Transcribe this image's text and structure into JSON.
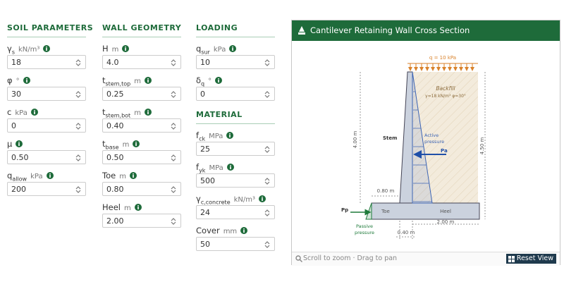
{
  "columns": [
    {
      "sections": [
        {
          "title": "SOIL PARAMETERS",
          "fields": [
            {
              "symbol": "γ",
              "sub": "s",
              "unit": "kN/m³",
              "value": "18"
            },
            {
              "symbol": "φ",
              "unit": "°",
              "value": "30"
            },
            {
              "symbol": "c",
              "unit": "kPa",
              "value": "0"
            },
            {
              "symbol": "μ",
              "value": "0.50"
            },
            {
              "symbol": "q",
              "sub": "allow",
              "unit": "kPa",
              "value": "200"
            }
          ]
        }
      ]
    },
    {
      "sections": [
        {
          "title": "WALL GEOMETRY",
          "fields": [
            {
              "symbol": "H",
              "unit": "m",
              "value": "4.0"
            },
            {
              "symbol": "t",
              "sub": "stem,top",
              "unit": "m",
              "value": "0.25"
            },
            {
              "symbol": "t",
              "sub": "stem,bot",
              "unit": "m",
              "value": "0.40"
            },
            {
              "symbol": "t",
              "sub": "base",
              "unit": "m",
              "value": "0.50"
            },
            {
              "symbol": "Toe",
              "unit": "m",
              "value": "0.80"
            },
            {
              "symbol": "Heel",
              "unit": "m",
              "value": "2.00"
            }
          ]
        }
      ]
    },
    {
      "sections": [
        {
          "title": "LOADING",
          "fields": [
            {
              "symbol": "q",
              "sub": "sur",
              "unit": "kPa",
              "value": "10"
            },
            {
              "symbol": "δ",
              "sub": "q",
              "unit": "°",
              "value": "0"
            }
          ]
        },
        {
          "title": "MATERIAL",
          "fields": [
            {
              "symbol": "f",
              "sub": "ck",
              "unit": "MPa",
              "value": "25"
            },
            {
              "symbol": "f",
              "sub": "yk",
              "unit": "MPa",
              "value": "500"
            },
            {
              "symbol": "γ",
              "sub": "c,concrete",
              "unit": "kN/m³",
              "value": "24"
            },
            {
              "symbol": "Cover",
              "unit": "mm",
              "value": "50"
            }
          ]
        }
      ]
    }
  ],
  "panel": {
    "title": "Cantilever Retaining Wall Cross Section",
    "diagram": {
      "surcharge": "q = 10 kPa",
      "backfill": "Backfill",
      "backfill_props": "γ=18 kN/m³  φ=30°",
      "stem": "Stem",
      "active": [
        "Active",
        "pressure"
      ],
      "pa": "Pa",
      "h_stem": "4.00 m",
      "h_total": "4.50 m",
      "toe": "0.80 m",
      "toe_label": "Toe",
      "heel_label": "Heel",
      "heel": "2.00 m",
      "stem_width": "0.40 m",
      "pp": "Pp",
      "passive": [
        "Passive",
        "pressure"
      ]
    },
    "hint": "Scroll to zoom · Drag to pan",
    "reset": "Reset View"
  }
}
